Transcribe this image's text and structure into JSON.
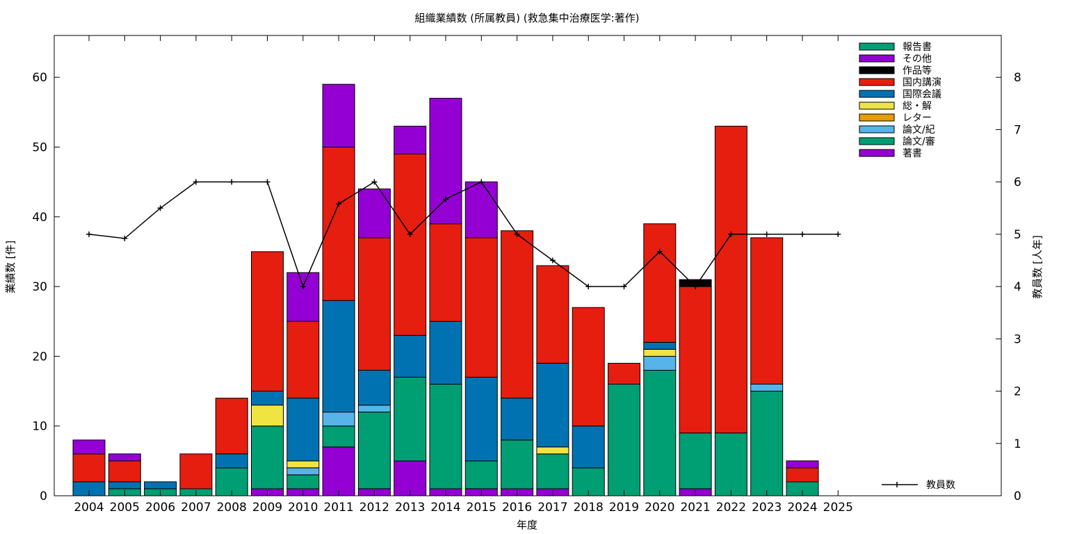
{
  "chart_data": {
    "type": "bar",
    "title": "組織業績数 (所属教員) (救急集中治療医学:著作)",
    "xlabel": "年度",
    "ylabel": "業績数 [件]",
    "y2label": "教員数 [人年]",
    "ylim": [
      0,
      66
    ],
    "yticks": [
      0,
      10,
      20,
      30,
      40,
      50,
      60
    ],
    "y2lim": [
      0,
      8.8
    ],
    "y2ticks": [
      0,
      1,
      2,
      3,
      4,
      5,
      6,
      7,
      8
    ],
    "stacked": true,
    "grid": false,
    "legend_position": "top-right",
    "categories": [
      "2004",
      "2005",
      "2006",
      "2007",
      "2008",
      "2009",
      "2010",
      "2011",
      "2012",
      "2013",
      "2014",
      "2015",
      "2016",
      "2017",
      "2018",
      "2019",
      "2020",
      "2021",
      "2022",
      "2023",
      "2024",
      "2025"
    ],
    "series": [
      {
        "name": "著書",
        "color": "#9400d3",
        "values": [
          0,
          0,
          0,
          0,
          0,
          1,
          1,
          7,
          1,
          5,
          1,
          1,
          1,
          1,
          0,
          0,
          0,
          1,
          0,
          0,
          0,
          0
        ]
      },
      {
        "name": "論文/審",
        "color": "#009e73",
        "values": [
          0,
          1,
          1,
          1,
          4,
          9,
          2,
          3,
          11,
          12,
          15,
          4,
          7,
          5,
          4,
          16,
          18,
          8,
          9,
          15,
          2,
          0
        ]
      },
      {
        "name": "論文/紀",
        "color": "#56b4e9",
        "values": [
          0,
          0,
          0,
          0,
          0,
          0,
          1,
          2,
          1,
          0,
          0,
          0,
          0,
          0,
          0,
          0,
          2,
          0,
          0,
          1,
          0,
          0
        ]
      },
      {
        "name": "レター",
        "color": "#e69f00",
        "values": [
          0,
          0,
          0,
          0,
          0,
          0,
          0,
          0,
          0,
          0,
          0,
          0,
          0,
          0,
          0,
          0,
          0,
          0,
          0,
          0,
          0,
          0
        ]
      },
      {
        "name": "総・解",
        "color": "#f0e442",
        "values": [
          0,
          0,
          0,
          0,
          0,
          3,
          1,
          0,
          0,
          0,
          0,
          0,
          0,
          1,
          0,
          0,
          1,
          0,
          0,
          0,
          0,
          0
        ]
      },
      {
        "name": "国際会議",
        "color": "#0072b2",
        "values": [
          2,
          1,
          1,
          0,
          2,
          2,
          9,
          16,
          5,
          6,
          9,
          12,
          6,
          12,
          6,
          0,
          1,
          0,
          0,
          0,
          0,
          0
        ]
      },
      {
        "name": "国内講演",
        "color": "#e51e10",
        "values": [
          4,
          3,
          0,
          5,
          8,
          20,
          11,
          22,
          19,
          26,
          14,
          20,
          24,
          14,
          17,
          3,
          17,
          21,
          44,
          21,
          2,
          0
        ]
      },
      {
        "name": "作品等",
        "color": "#000000",
        "values": [
          0,
          0,
          0,
          0,
          0,
          0,
          0,
          0,
          0,
          0,
          0,
          0,
          0,
          0,
          0,
          0,
          0,
          1,
          0,
          0,
          0,
          0
        ]
      },
      {
        "name": "その他",
        "color": "#9400d3",
        "values": [
          2,
          1,
          0,
          0,
          0,
          0,
          7,
          9,
          7,
          4,
          18,
          8,
          0,
          0,
          0,
          0,
          0,
          0,
          0,
          0,
          1,
          0
        ]
      },
      {
        "name": "報告書",
        "color": "#009e73",
        "values": [
          0,
          0,
          0,
          0,
          0,
          0,
          0,
          0,
          0,
          0,
          0,
          0,
          0,
          0,
          0,
          0,
          0,
          0,
          0,
          0,
          0,
          0
        ]
      }
    ],
    "line_series": {
      "name": "教員数",
      "axis": "right",
      "color": "#000000",
      "values": [
        5,
        4.92,
        5.5,
        6,
        6,
        6,
        4,
        5.58,
        6,
        5,
        5.67,
        6,
        5,
        4.5,
        4,
        4,
        4.67,
        4,
        5,
        5,
        5,
        5
      ]
    },
    "legend_order": [
      "報告書",
      "その他",
      "作品等",
      "国内講演",
      "国際会議",
      "総・解",
      "レター",
      "論文/紀",
      "論文/審",
      "著書"
    ]
  }
}
